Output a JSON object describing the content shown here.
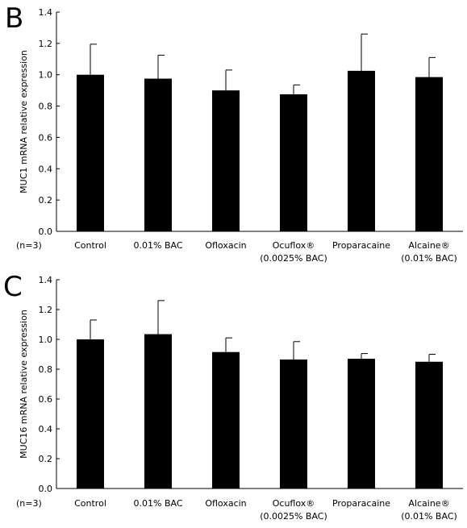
{
  "chart_data": [
    {
      "type": "bar",
      "panel_label": "B",
      "ylabel": "MUC1 mRNA relative expression",
      "n_label": "(n=3)",
      "categories": [
        [
          "Control"
        ],
        [
          "0.01% BAC"
        ],
        [
          "Ofloxacin"
        ],
        [
          "Ocuflox®",
          "(0.0025% BAC)"
        ],
        [
          "Proparacaine"
        ],
        [
          "Alcaine®",
          "(0.01% BAC)"
        ]
      ],
      "values": [
        1.0,
        0.975,
        0.9,
        0.875,
        1.025,
        0.985
      ],
      "errors": [
        0.195,
        0.15,
        0.13,
        0.06,
        0.235,
        0.125
      ],
      "ylim": [
        0,
        1.4
      ],
      "yticks": [
        "0.0",
        "0.2",
        "0.4",
        "0.6",
        "0.8",
        "1.0",
        "1.2",
        "1.4"
      ],
      "grid": false,
      "bar_color": "#000000"
    },
    {
      "type": "bar",
      "panel_label": "C",
      "ylabel": "MUC16 mRNA relative expression",
      "n_label": "(n=3)",
      "categories": [
        [
          "Control"
        ],
        [
          "0.01% BAC"
        ],
        [
          "Ofloxacin"
        ],
        [
          "Ocuflox®",
          "(0.0025% BAC)"
        ],
        [
          "Proparacaine"
        ],
        [
          "Alcaine®",
          "(0.01% BAC)"
        ]
      ],
      "values": [
        1.0,
        1.035,
        0.915,
        0.865,
        0.87,
        0.85
      ],
      "errors": [
        0.13,
        0.225,
        0.095,
        0.12,
        0.035,
        0.05
      ],
      "ylim": [
        0,
        1.4
      ],
      "yticks": [
        "0.0",
        "0.2",
        "0.4",
        "0.6",
        "0.8",
        "1.0",
        "1.2",
        "1.4"
      ],
      "grid": false,
      "bar_color": "#000000"
    }
  ]
}
